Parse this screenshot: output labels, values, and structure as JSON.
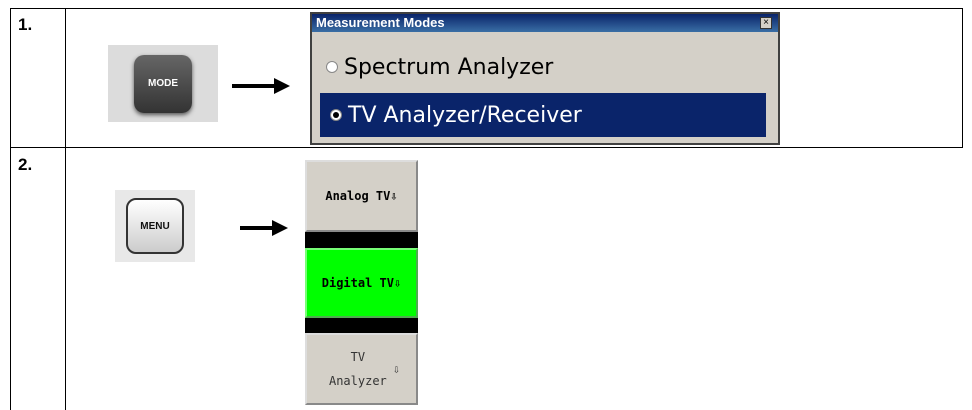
{
  "rows": [
    {
      "number": "1.",
      "key": "MODE",
      "dialog": {
        "title": "Measurement Modes",
        "options": [
          "Spectrum Analyzer",
          "TV Analyzer/Receiver"
        ]
      }
    },
    {
      "number": "2.",
      "key": "MENU",
      "softkeys": [
        "Analog TV",
        "Digital TV",
        "TV Analyzer"
      ]
    }
  ]
}
